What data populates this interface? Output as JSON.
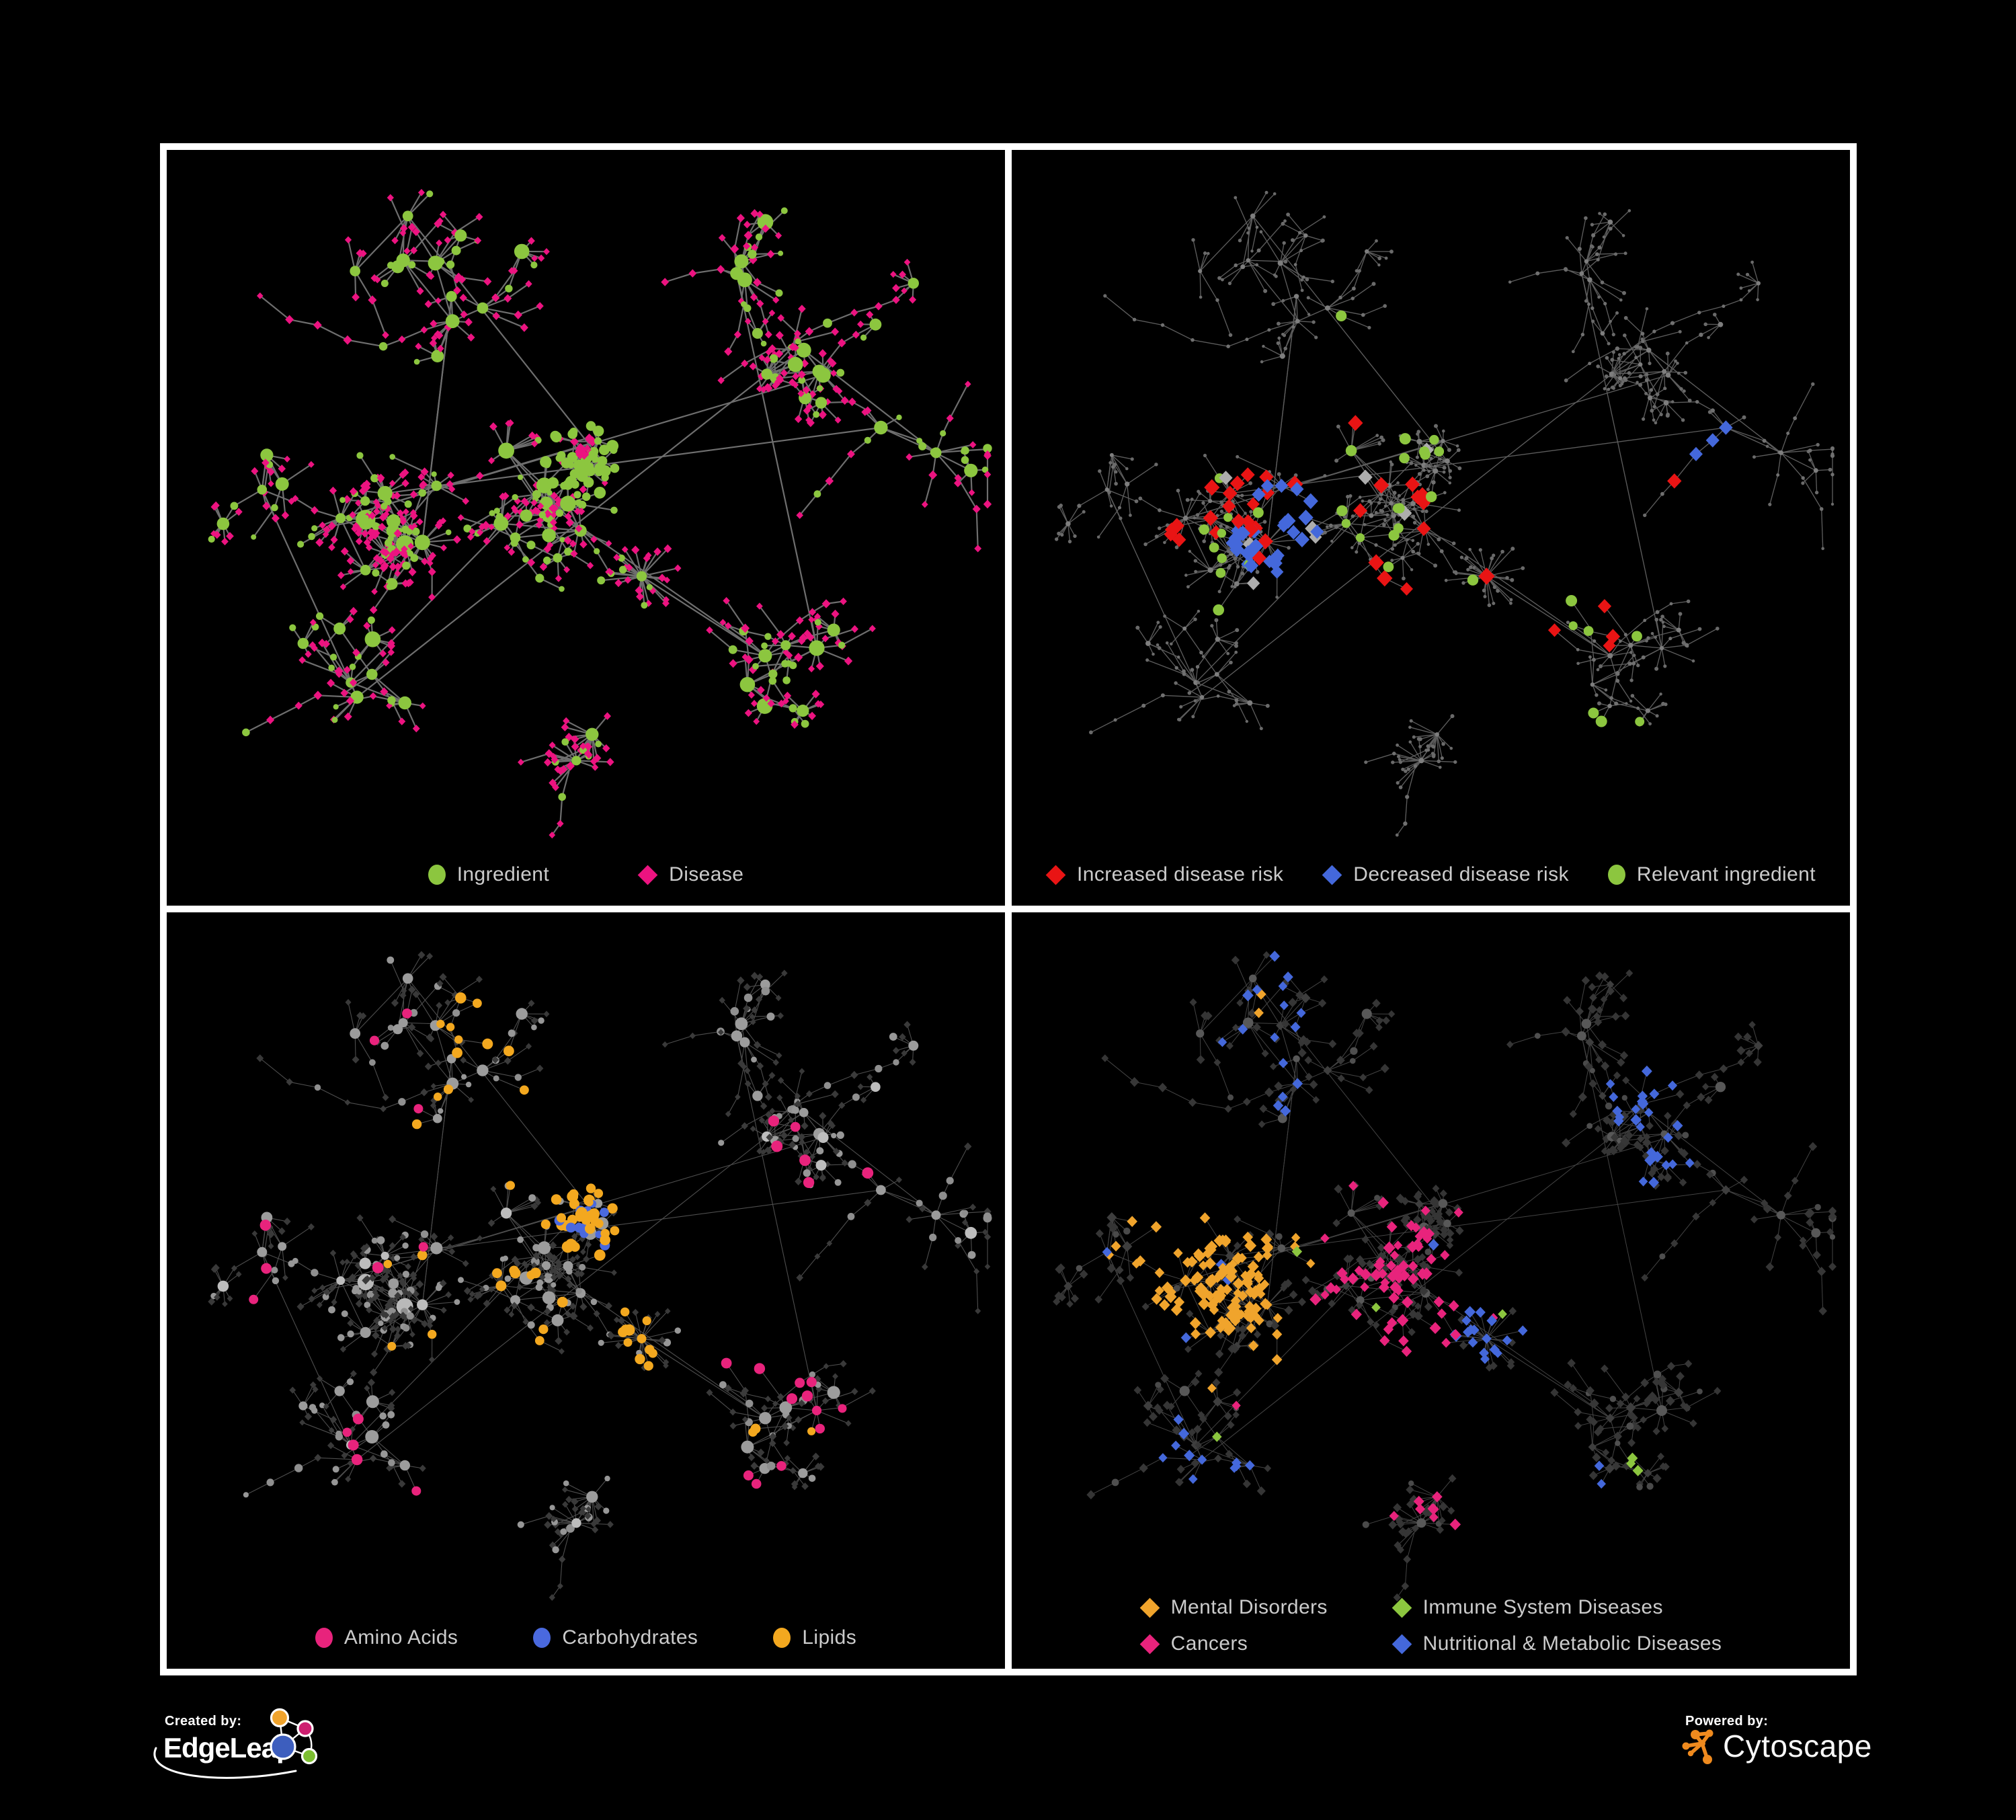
{
  "colors": {
    "background": "#000000",
    "frame": "#ffffff",
    "legend_text": "#cbcbcb",
    "ingredient_green": "#8CC63F",
    "disease_magenta": "#EC1380",
    "risk_red": "#E91414",
    "risk_blue": "#4468DB",
    "neutral_gray_diamond": "#ADADAD",
    "amino_pink": "#E8237C",
    "carb_blue": "#4A69DE",
    "lipid_orange": "#F3A81F",
    "mental_orange": "#F0A42C",
    "immune_green": "#8CC63F",
    "cancer_pink": "#E8237C",
    "metabolic_blue": "#4468DB",
    "edgeleap_blue": "#3D5EBE",
    "edgeleap_orange": "#F0A32C",
    "edgeleap_magenta": "#CD1F70",
    "edgeleap_green": "#7CBE31",
    "cytoscape_orange": "#EF8A1E"
  },
  "network": {
    "seed": 7,
    "links": 14,
    "clusters": [
      [
        0.27,
        0.48,
        85,
        8,
        9,
        15,
        38,
        0.25
      ],
      [
        0.44,
        0.48,
        95,
        8,
        7,
        12,
        38,
        0.3
      ],
      [
        0.5,
        0.4,
        40,
        5,
        8,
        12,
        23,
        0.08
      ],
      [
        0.565,
        0.565,
        10,
        1,
        26,
        32,
        46,
        0.05
      ],
      [
        0.38,
        0.17,
        95,
        6,
        4,
        8,
        42,
        0.42
      ],
      [
        0.67,
        0.14,
        70,
        3,
        4,
        7,
        42,
        0.42
      ],
      [
        0.76,
        0.3,
        75,
        5,
        4,
        8,
        42,
        0.45
      ],
      [
        0.89,
        0.38,
        50,
        2,
        4,
        7,
        44,
        0.5
      ],
      [
        0.72,
        0.66,
        60,
        4,
        6,
        10,
        38,
        0.3
      ],
      [
        0.5,
        0.8,
        22,
        2,
        12,
        16,
        40,
        0.1
      ],
      [
        0.27,
        0.7,
        75,
        4,
        5,
        8,
        42,
        0.4
      ],
      [
        0.13,
        0.42,
        60,
        3,
        4,
        7,
        42,
        0.35
      ],
      [
        0.27,
        0.13,
        55,
        3,
        4,
        7,
        42,
        0.4
      ]
    ]
  },
  "panels": [
    {
      "name": "ingredient-disease-network",
      "legend_rows": [
        [
          {
            "shape": "circle",
            "color": "#8CC63F",
            "label": "Ingredient"
          },
          {
            "shape": "diamond",
            "color": "#EC1380",
            "label": "Disease"
          }
        ]
      ],
      "style": {
        "seed": 11,
        "edge": [
          "#7B7B7B",
          2.2,
          0.9
        ],
        "roles": {
          "mega": [
            [
              1,
              "c",
              "#8CC63F",
              13,
              16
            ]
          ],
          "hub": [
            [
              1,
              "c",
              "#8CC63F",
              7,
              12
            ]
          ],
          "child": [
            [
              0.3,
              "c",
              "#8CC63F",
              4.5,
              7
            ],
            [
              0.7,
              "d",
              "#EC1380",
              5.5,
              7
            ]
          ],
          "leaf": [
            [
              0.16,
              "c",
              "#8CC63F",
              4,
              6
            ],
            [
              0.84,
              "d",
              "#EC1380",
              5,
              6.5
            ]
          ]
        },
        "zones": [
          [
            0.5,
            0.4,
            0.055,
            0.9,
            "c",
            "#8CC63F",
            5,
            9
          ],
          [
            0.497,
            0.388,
            0.016,
            0.95,
            "d",
            "#EC1380",
            6,
            8
          ]
        ]
      }
    },
    {
      "name": "disease-risk-network",
      "legend_rows": [
        [
          {
            "shape": "diamond",
            "color": "#E91414",
            "label": "Increased disease risk"
          },
          {
            "shape": "diamond",
            "color": "#4468DB",
            "label": "Decreased disease risk"
          },
          {
            "shape": "circle",
            "color": "#8CC63F",
            "label": "Relevant ingredient"
          }
        ]
      ],
      "style": {
        "seed": 22,
        "edge": [
          "#6D6D6D",
          1.35,
          0.85
        ],
        "roles": {
          "mega": [
            [
              1,
              "c",
              "#7E7E7E",
              3.2,
              4.4
            ]
          ],
          "hub": [
            [
              1,
              "c",
              "#7E7E7E",
              3.0,
              4.2
            ]
          ],
          "child": [
            [
              1,
              "c",
              "#707070",
              2.3,
              3.2
            ]
          ],
          "leaf": [
            [
              1,
              "c",
              "#6A6A6A",
              2.2,
              3.0
            ]
          ]
        },
        "zones": [
          [
            0.33,
            0.5,
            0.2,
            0.025,
            "d",
            "#ADADAD",
            10,
            12
          ],
          [
            0.4,
            0.47,
            0.23,
            0.06,
            "c",
            "#8CC63F",
            6.5,
            8.5
          ],
          [
            0.71,
            0.62,
            0.05,
            0.35,
            "c",
            "#8CC63F",
            6.5,
            8.5
          ],
          [
            0.71,
            0.79,
            0.05,
            0.35,
            "c",
            "#8CC63F",
            6.5,
            8.5
          ],
          [
            0.79,
            0.4,
            0.02,
            0.8,
            "c",
            "#8CC63F",
            6.5,
            8
          ],
          [
            0.47,
            0.5,
            0.2,
            0.085,
            "d",
            "#E91414",
            10,
            13
          ],
          [
            0.29,
            0.47,
            0.06,
            0.3,
            "d",
            "#E91414",
            10,
            13
          ],
          [
            0.2,
            0.51,
            0.02,
            0.7,
            "d",
            "#E91414",
            10,
            12
          ],
          [
            0.4,
            0.36,
            0.02,
            0.6,
            "d",
            "#E91414",
            11,
            12
          ],
          [
            0.7,
            0.6,
            0.07,
            0.25,
            "d",
            "#E91414",
            10,
            12
          ],
          [
            0.9,
            0.8,
            0.05,
            0.4,
            "d",
            "#E91414",
            11,
            13
          ],
          [
            0.78,
            0.445,
            0.025,
            0.7,
            "d",
            "#E91414",
            11,
            13
          ],
          [
            0.315,
            0.5,
            0.055,
            0.5,
            "d",
            "#4468DB",
            10,
            12
          ],
          [
            0.83,
            0.38,
            0.025,
            0.95,
            "d",
            "#4468DB",
            10,
            11
          ]
        ]
      }
    },
    {
      "name": "nutrient-class-network",
      "legend_rows": [
        [
          {
            "shape": "circle",
            "color": "#E8237C",
            "label": "Amino Acids"
          },
          {
            "shape": "circle",
            "color": "#4A69DE",
            "label": "Carbohydrates"
          },
          {
            "shape": "circle",
            "color": "#F3A81F",
            "label": "Lipids"
          }
        ]
      ],
      "style": {
        "seed": 33,
        "edge": [
          "#9B9B9B",
          1.1,
          0.5
        ],
        "roles": {
          "mega": [
            [
              1,
              "c",
              "#B9B9B9",
              10,
              13
            ]
          ],
          "hub": [
            [
              0.85,
              "c",
              "#9C9C9C",
              6.5,
              10
            ],
            [
              0.15,
              "c",
              "#BDBDBD",
              6,
              9
            ]
          ],
          "child": [
            [
              0.42,
              "c",
              "#8F8F8F",
              4.5,
              6.5
            ],
            [
              0.58,
              "d",
              "#3B3B3B",
              4.5,
              6
            ]
          ],
          "leaf": [
            [
              0.2,
              "c",
              "#979797",
              4,
              6
            ],
            [
              0.8,
              "d",
              "#393939",
              4.5,
              6
            ]
          ]
        },
        "zones": [
          [
            0.505,
            0.4,
            0.05,
            0.65,
            "c",
            "#F3A81F",
            6,
            8.5
          ],
          [
            0.515,
            0.405,
            0.05,
            0.3,
            "c",
            "#4A69DE",
            5.5,
            7.5
          ],
          [
            0.42,
            0.23,
            0.13,
            0.18,
            "c",
            "#F3A81F",
            6,
            8.5
          ],
          [
            0.46,
            0.5,
            0.22,
            0.055,
            "c",
            "#F3A81F",
            6,
            8.5
          ],
          [
            0.565,
            0.565,
            0.025,
            0.8,
            "c",
            "#F3A81F",
            6.5,
            8.5
          ],
          [
            0.68,
            0.52,
            0.18,
            0.04,
            "c",
            "#F3A81F",
            6,
            8
          ],
          [
            0.24,
            0.2,
            0.1,
            0.12,
            "c",
            "#E8237C",
            6.5,
            8.5
          ],
          [
            0.2,
            0.44,
            0.12,
            0.06,
            "c",
            "#E8237C",
            6.5,
            8.5
          ],
          [
            0.28,
            0.72,
            0.1,
            0.12,
            "c",
            "#E8237C",
            6.5,
            8.5
          ],
          [
            0.7,
            0.66,
            0.11,
            0.16,
            "c",
            "#E8237C",
            6.5,
            8.5
          ],
          [
            0.8,
            0.27,
            0.1,
            0.08,
            "c",
            "#E8237C",
            6.5,
            8.5
          ],
          [
            0.45,
            0.62,
            0.08,
            0.08,
            "c",
            "#E8237C",
            6.5,
            8.5
          ],
          [
            0.53,
            0.04,
            0.03,
            0.6,
            "c",
            "#E8237C",
            6.5,
            8
          ],
          [
            0.95,
            0.28,
            0.02,
            0.8,
            "c",
            "#E8237C",
            6.5,
            8
          ],
          [
            0.05,
            0.25,
            0.015,
            0.9,
            "c",
            "#4A69DE",
            5.5,
            7.5
          ],
          [
            0.285,
            0.065,
            0.015,
            0.9,
            "c",
            "#4A69DE",
            5.5,
            7.5
          ],
          [
            0.42,
            0.315,
            0.015,
            0.8,
            "c",
            "#4A69DE",
            5.5,
            7.5
          ],
          [
            0.68,
            0.555,
            0.015,
            0.8,
            "c",
            "#4A69DE",
            5.5,
            7.5
          ]
        ]
      }
    },
    {
      "name": "disease-category-network",
      "legend_rows": [
        [
          {
            "shape": "diamond",
            "color": "#F0A42C",
            "label": "Mental Disorders"
          },
          {
            "shape": "diamond",
            "color": "#8CC63F",
            "label": "Immune System Diseases"
          }
        ],
        [
          {
            "shape": "diamond",
            "color": "#E8237C",
            "label": "Cancers"
          },
          {
            "shape": "diamond",
            "color": "#4468DB",
            "label": "Nutritional & Metabolic Diseases"
          }
        ]
      ],
      "style": {
        "seed": 44,
        "edge": [
          "#A9A9A9",
          1.0,
          0.4
        ],
        "roles": {
          "mega": [
            [
              1,
              "c",
              "#616161",
              9,
              11
            ]
          ],
          "hub": [
            [
              0.5,
              "c",
              "#585858",
              5,
              8
            ],
            [
              0.5,
              "d",
              "#3E3E3E",
              6,
              8
            ]
          ],
          "child": [
            [
              0.12,
              "c",
              "#4F4F4F",
              4,
              6
            ],
            [
              0.88,
              "d",
              "#373737",
              5.5,
              7.5
            ]
          ],
          "leaf": [
            [
              0.08,
              "c",
              "#4A4A4A",
              4,
              5.5
            ],
            [
              0.92,
              "d",
              "#353535",
              5.5,
              7
            ]
          ]
        },
        "zones": [
          [
            0.23,
            0.47,
            0.085,
            0.8,
            "d",
            "#F0A42C",
            7,
            9.5
          ],
          [
            0.23,
            0.47,
            0.145,
            0.22,
            "d",
            "#F0A42C",
            7,
            9
          ],
          [
            0.3,
            0.12,
            0.02,
            0.6,
            "d",
            "#F0A42C",
            7,
            9
          ],
          [
            0.135,
            0.3,
            0.015,
            0.7,
            "d",
            "#F0A42C",
            7,
            9
          ],
          [
            0.625,
            0.42,
            0.015,
            0.6,
            "d",
            "#F0A42C",
            7,
            9
          ],
          [
            0.55,
            0.625,
            0.015,
            0.5,
            "d",
            "#F0A42C",
            7,
            9
          ],
          [
            0.17,
            0.73,
            0.03,
            0.35,
            "d",
            "#F0A42C",
            7,
            9
          ],
          [
            0.675,
            0.8,
            0.015,
            0.5,
            "d",
            "#F0A42C",
            7,
            9
          ],
          [
            0.45,
            0.52,
            0.1,
            0.42,
            "d",
            "#E8237C",
            7,
            9.5
          ],
          [
            0.43,
            0.31,
            0.07,
            0.22,
            "d",
            "#E8237C",
            7,
            9
          ],
          [
            0.48,
            0.43,
            0.16,
            0.09,
            "d",
            "#E8237C",
            7,
            9
          ],
          [
            0.87,
            0.28,
            0.05,
            0.35,
            "d",
            "#E8237C",
            7,
            9
          ],
          [
            0.48,
            0.8,
            0.06,
            0.22,
            "d",
            "#E8237C",
            7,
            9
          ],
          [
            0.27,
            0.68,
            0.04,
            0.18,
            "d",
            "#E8237C",
            7,
            9
          ],
          [
            0.575,
            0.555,
            0.05,
            0.7,
            "d",
            "#4468DB",
            7,
            9
          ],
          [
            0.625,
            0.475,
            0.04,
            0.4,
            "d",
            "#4468DB",
            7,
            9
          ],
          [
            0.25,
            0.14,
            0.1,
            0.25,
            "d",
            "#4468DB",
            7,
            9
          ],
          [
            0.29,
            0.27,
            0.09,
            0.12,
            "d",
            "#4468DB",
            7,
            9
          ],
          [
            0.6,
            0.075,
            0.04,
            0.5,
            "d",
            "#4468DB",
            7,
            9
          ],
          [
            0.8,
            0.24,
            0.09,
            0.28,
            "d",
            "#4468DB",
            7,
            9
          ],
          [
            0.71,
            0.38,
            0.06,
            0.22,
            "d",
            "#4468DB",
            7,
            9
          ],
          [
            0.24,
            0.72,
            0.07,
            0.28,
            "d",
            "#4468DB",
            7,
            9
          ],
          [
            0.305,
            0.61,
            0.04,
            0.3,
            "d",
            "#4468DB",
            7,
            9
          ],
          [
            0.5,
            0.45,
            0.45,
            0.012,
            "d",
            "#4468DB",
            7,
            9
          ],
          [
            0.41,
            0.265,
            0.012,
            0.9,
            "d",
            "#8CC63F",
            7,
            8.5
          ],
          [
            0.505,
            0.26,
            0.012,
            0.9,
            "d",
            "#8CC63F",
            7,
            8.5
          ],
          [
            0.3,
            0.325,
            0.012,
            0.8,
            "d",
            "#8CC63F",
            7,
            8.5
          ],
          [
            0.345,
            0.46,
            0.012,
            0.8,
            "d",
            "#8CC63F",
            7,
            8.5
          ],
          [
            0.425,
            0.53,
            0.012,
            0.8,
            "d",
            "#8CC63F",
            7,
            8.5
          ],
          [
            0.58,
            0.53,
            0.012,
            0.8,
            "d",
            "#8CC63F",
            7,
            8.5
          ],
          [
            0.255,
            0.7,
            0.012,
            0.8,
            "d",
            "#8CC63F",
            7,
            8.5
          ],
          [
            0.69,
            0.765,
            0.012,
            0.8,
            "d",
            "#8CC63F",
            7,
            8.5
          ],
          [
            0.745,
            0.73,
            0.012,
            0.8,
            "d",
            "#8CC63F",
            7,
            8.5
          ]
        ]
      }
    }
  ],
  "footer": {
    "created_by_label": "Created by:",
    "created_by_brand": "EdgeLeap",
    "powered_by_label": "Powered by:",
    "powered_by_brand": "Cytoscape"
  }
}
